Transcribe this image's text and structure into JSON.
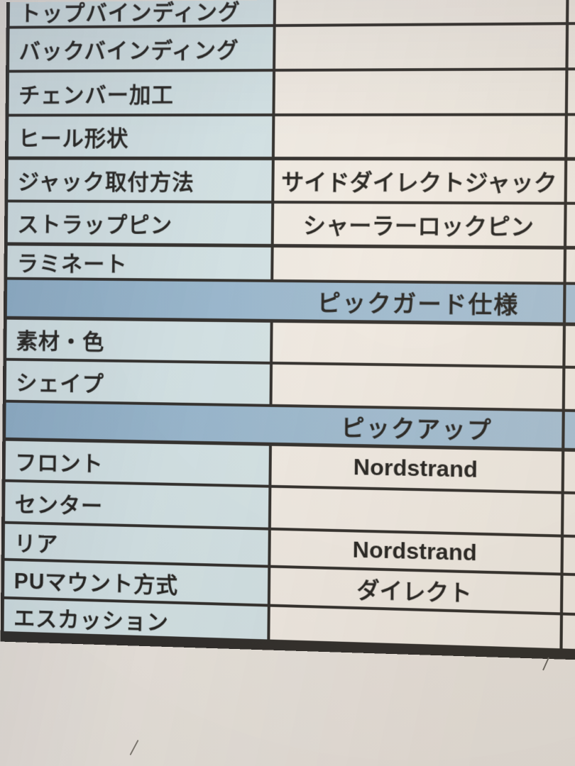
{
  "document_title": "instrument-spec-sheet",
  "colors": {
    "paper": "#eae4dc",
    "label_cell": "#d4e3e5",
    "value_cell": "#f2ece3",
    "band_l": "#8fb0c8",
    "band_r": "#abc4d6",
    "line": "#2e2b27",
    "text": "#23211d"
  },
  "table": {
    "rows": [
      {
        "type": "data",
        "label": "トップバインディング",
        "value": ""
      },
      {
        "type": "data",
        "label": "バックバインディング",
        "value": ""
      },
      {
        "type": "data",
        "label": "チェンバー加工",
        "value": ""
      },
      {
        "type": "data",
        "label": "ヒール形状",
        "value": ""
      },
      {
        "type": "data",
        "label": "ジャック取付方法",
        "value": "サイドダイレクトジャック"
      },
      {
        "type": "data",
        "label": "ストラップピン",
        "value": "シャーラーロックピン"
      },
      {
        "type": "data",
        "label": "ラミネート",
        "value": ""
      },
      {
        "type": "section",
        "label": "ピックガード仕様"
      },
      {
        "type": "data",
        "label": "素材・色",
        "value": ""
      },
      {
        "type": "data",
        "label": "シェイプ",
        "value": ""
      },
      {
        "type": "section",
        "label": "ピックアップ"
      },
      {
        "type": "data",
        "label": "フロント",
        "value": "Nordstrand"
      },
      {
        "type": "data",
        "label": "センター",
        "value": ""
      },
      {
        "type": "data",
        "label": "リア",
        "value": "Nordstrand"
      },
      {
        "type": "data",
        "label": "PUマウント方式",
        "value": "ダイレクト"
      },
      {
        "type": "data",
        "label": "エスカッション",
        "value": ""
      }
    ]
  }
}
